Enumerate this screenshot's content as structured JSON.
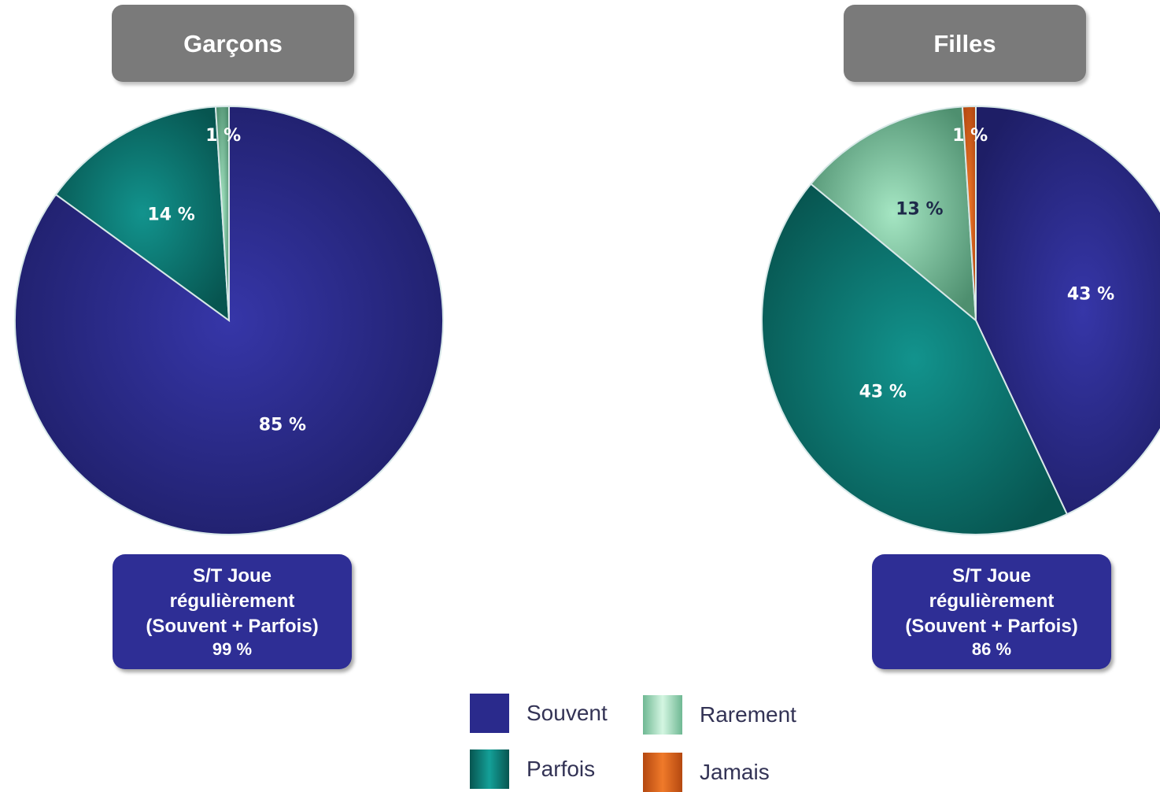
{
  "charts": [
    {
      "id": "garcons",
      "title": "Garçons",
      "summary": {
        "line1": "S/T Joue",
        "line2": "régulièrement",
        "line3": "(Souvent + Parfois)",
        "value": "99 %"
      }
    },
    {
      "id": "filles",
      "title": "Filles",
      "summary": {
        "line1": "S/T Joue",
        "line2": "régulièrement",
        "line3": "(Souvent + Parfois)",
        "value": "86 %"
      }
    }
  ],
  "legend": [
    {
      "label": "Souvent",
      "color": "#2a2a8c"
    },
    {
      "label": "Rarement",
      "color": "#8fd8b0"
    },
    {
      "label": "Parfois",
      "color": "#0d7c78"
    },
    {
      "label": "Jamais",
      "color": "#e0601a"
    }
  ],
  "chart_data": [
    {
      "type": "pie",
      "title": "Garçons",
      "slices": [
        {
          "name": "Souvent",
          "value": 85,
          "label": "85 %",
          "color": "#2a2a8c",
          "label_color": "#ffffff"
        },
        {
          "name": "Parfois",
          "value": 14,
          "label": "14 %",
          "color": "#0d7c78",
          "label_color": "#ffffff"
        },
        {
          "name": "Rarement",
          "value": 1,
          "label": "1 %",
          "color": "#8fd8b0",
          "label_color": "#ffffff"
        }
      ]
    },
    {
      "type": "pie",
      "title": "Filles",
      "slices": [
        {
          "name": "Souvent",
          "value": 43,
          "label": "43 %",
          "color": "#2a2a8c",
          "label_color": "#ffffff"
        },
        {
          "name": "Parfois",
          "value": 43,
          "label": "43 %",
          "color": "#0d7c78",
          "label_color": "#ffffff"
        },
        {
          "name": "Rarement",
          "value": 13,
          "label": "13 %",
          "color": "#8fd8b0",
          "label_color": "#1e2a4a"
        },
        {
          "name": "Jamais",
          "value": 1,
          "label": "1 %",
          "color": "#e0601a",
          "label_color": "#ffffff"
        }
      ]
    }
  ]
}
